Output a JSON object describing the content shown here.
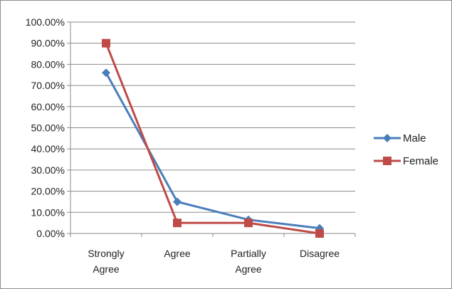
{
  "chart_data": {
    "type": "line",
    "title": "",
    "xlabel": "",
    "ylabel": "",
    "categories": [
      [
        "Strongly",
        "Agree"
      ],
      [
        "Agree"
      ],
      [
        "Partially",
        "Agree"
      ],
      [
        "Disagree"
      ]
    ],
    "y_ticks": [
      "0.00%",
      "10.00%",
      "20.00%",
      "30.00%",
      "40.00%",
      "50.00%",
      "60.00%",
      "70.00%",
      "80.00%",
      "90.00%",
      "100.00%"
    ],
    "ylim": [
      0,
      1
    ],
    "grid": true,
    "legend_position": "right",
    "series": [
      {
        "name": "Male",
        "color": "#4a7ebb",
        "marker": "diamond",
        "values": [
          0.76,
          0.15,
          0.065,
          0.025
        ]
      },
      {
        "name": "Female",
        "color": "#be4b48",
        "marker": "square",
        "values": [
          0.9,
          0.05,
          0.05,
          0.0
        ]
      }
    ]
  }
}
